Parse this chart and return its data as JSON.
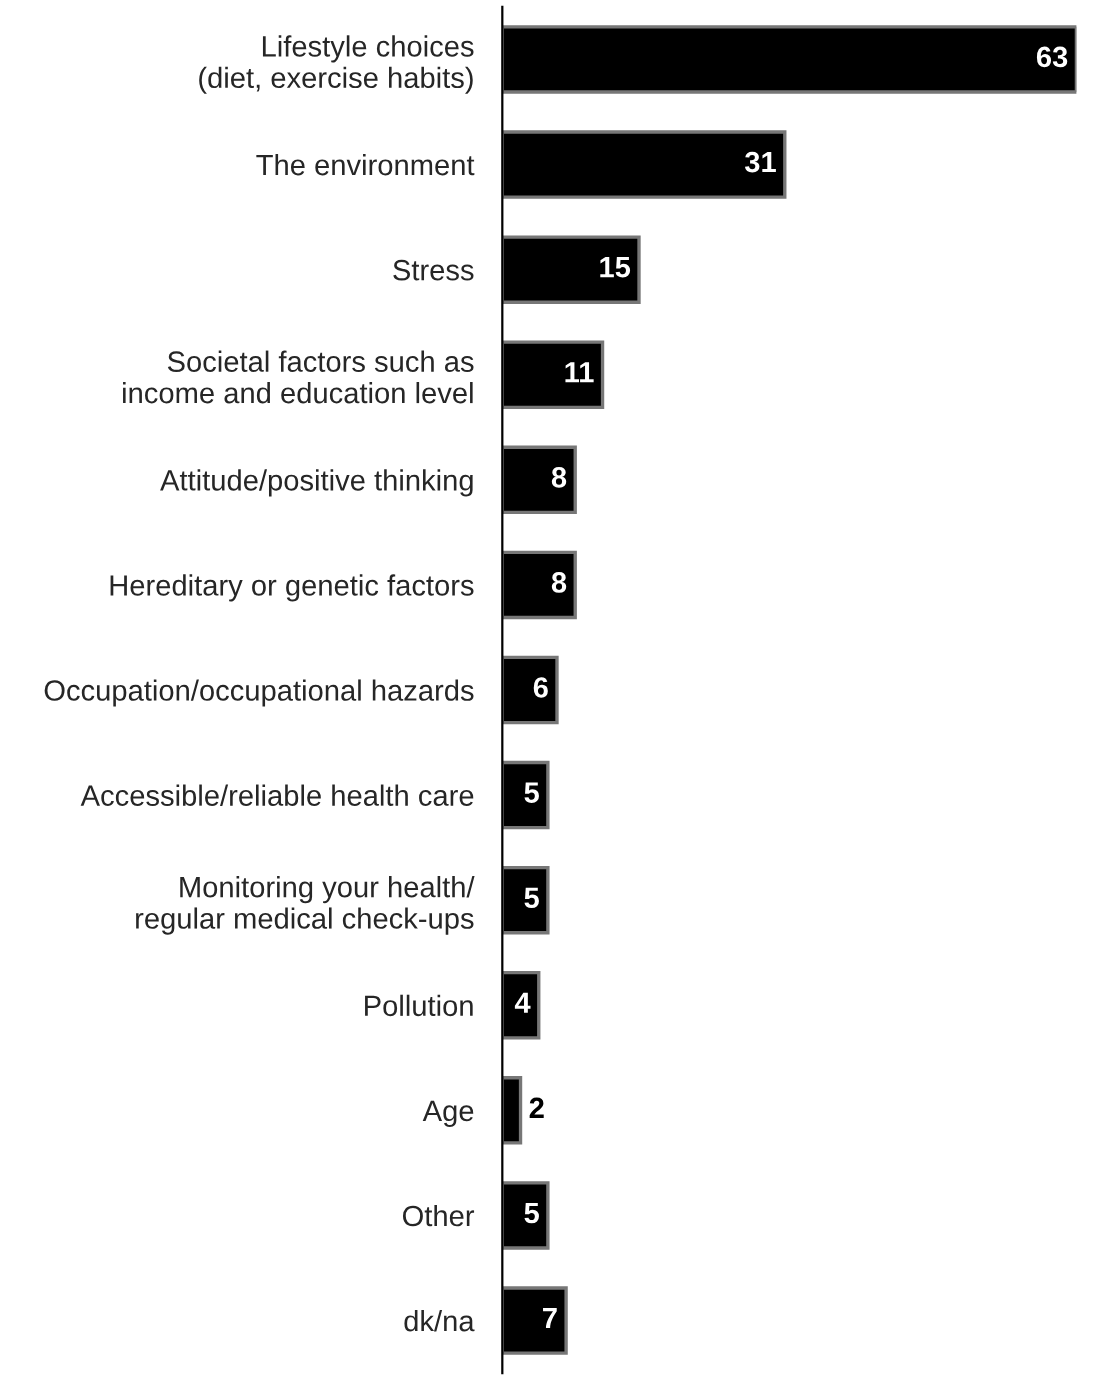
{
  "chart_data": {
    "type": "bar",
    "orientation": "horizontal",
    "categories": [
      "Lifestyle choices\n(diet, exercise habits)",
      "The environment",
      "Stress",
      "Societal factors such as\nincome and education level",
      "Attitude/positive thinking",
      "Hereditary or genetic factors",
      "Occupation/occupational hazards",
      "Accessible/reliable health care",
      "Monitoring your health/\nregular medical check-ups",
      "Pollution",
      "Age",
      "Other",
      "dk/na"
    ],
    "values": [
      63,
      31,
      15,
      11,
      8,
      8,
      6,
      5,
      5,
      4,
      2,
      5,
      7
    ],
    "color": "#000000",
    "xlim": [
      0,
      63
    ],
    "data_labels": true,
    "grid": false,
    "legend": false,
    "tick_labels": "y"
  }
}
